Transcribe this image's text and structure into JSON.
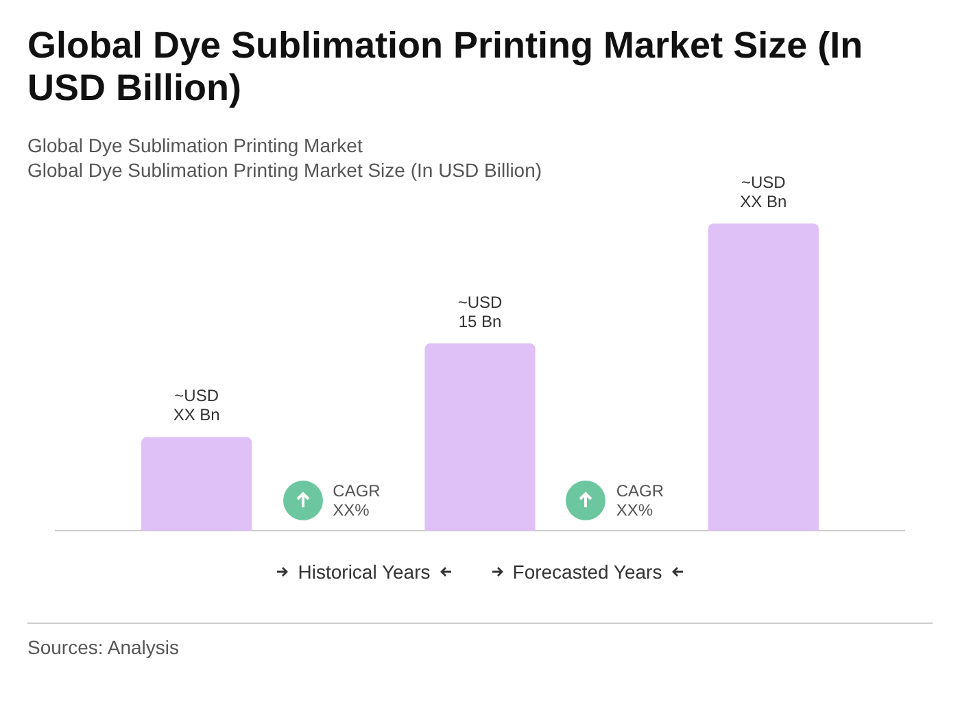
{
  "chart_data": {
    "type": "bar",
    "title": "Global Dye Sublimation Printing Market Size (In USD Billion)",
    "subtitle": "Global Dye Sublimation Printing Market",
    "categories": [
      null,
      null,
      null
    ],
    "values": [
      7.5,
      15,
      24.6
    ],
    "color": "#dfc0f7",
    "tick_labels": false,
    "value_labels": [
      "~USD\nXX Bn",
      "~USD\n15 Bn",
      "~USD\nXX Bn"
    ],
    "annotations": [
      "Global Dye Sublimation Printing Market Size (In USD Billion)",
      "CAGR\nXX%",
      "CAGR\nXX%",
      "Historical Years",
      "Forecasted Years",
      "Sources: Analysis"
    ],
    "grid": false,
    "legend": false
  }
}
